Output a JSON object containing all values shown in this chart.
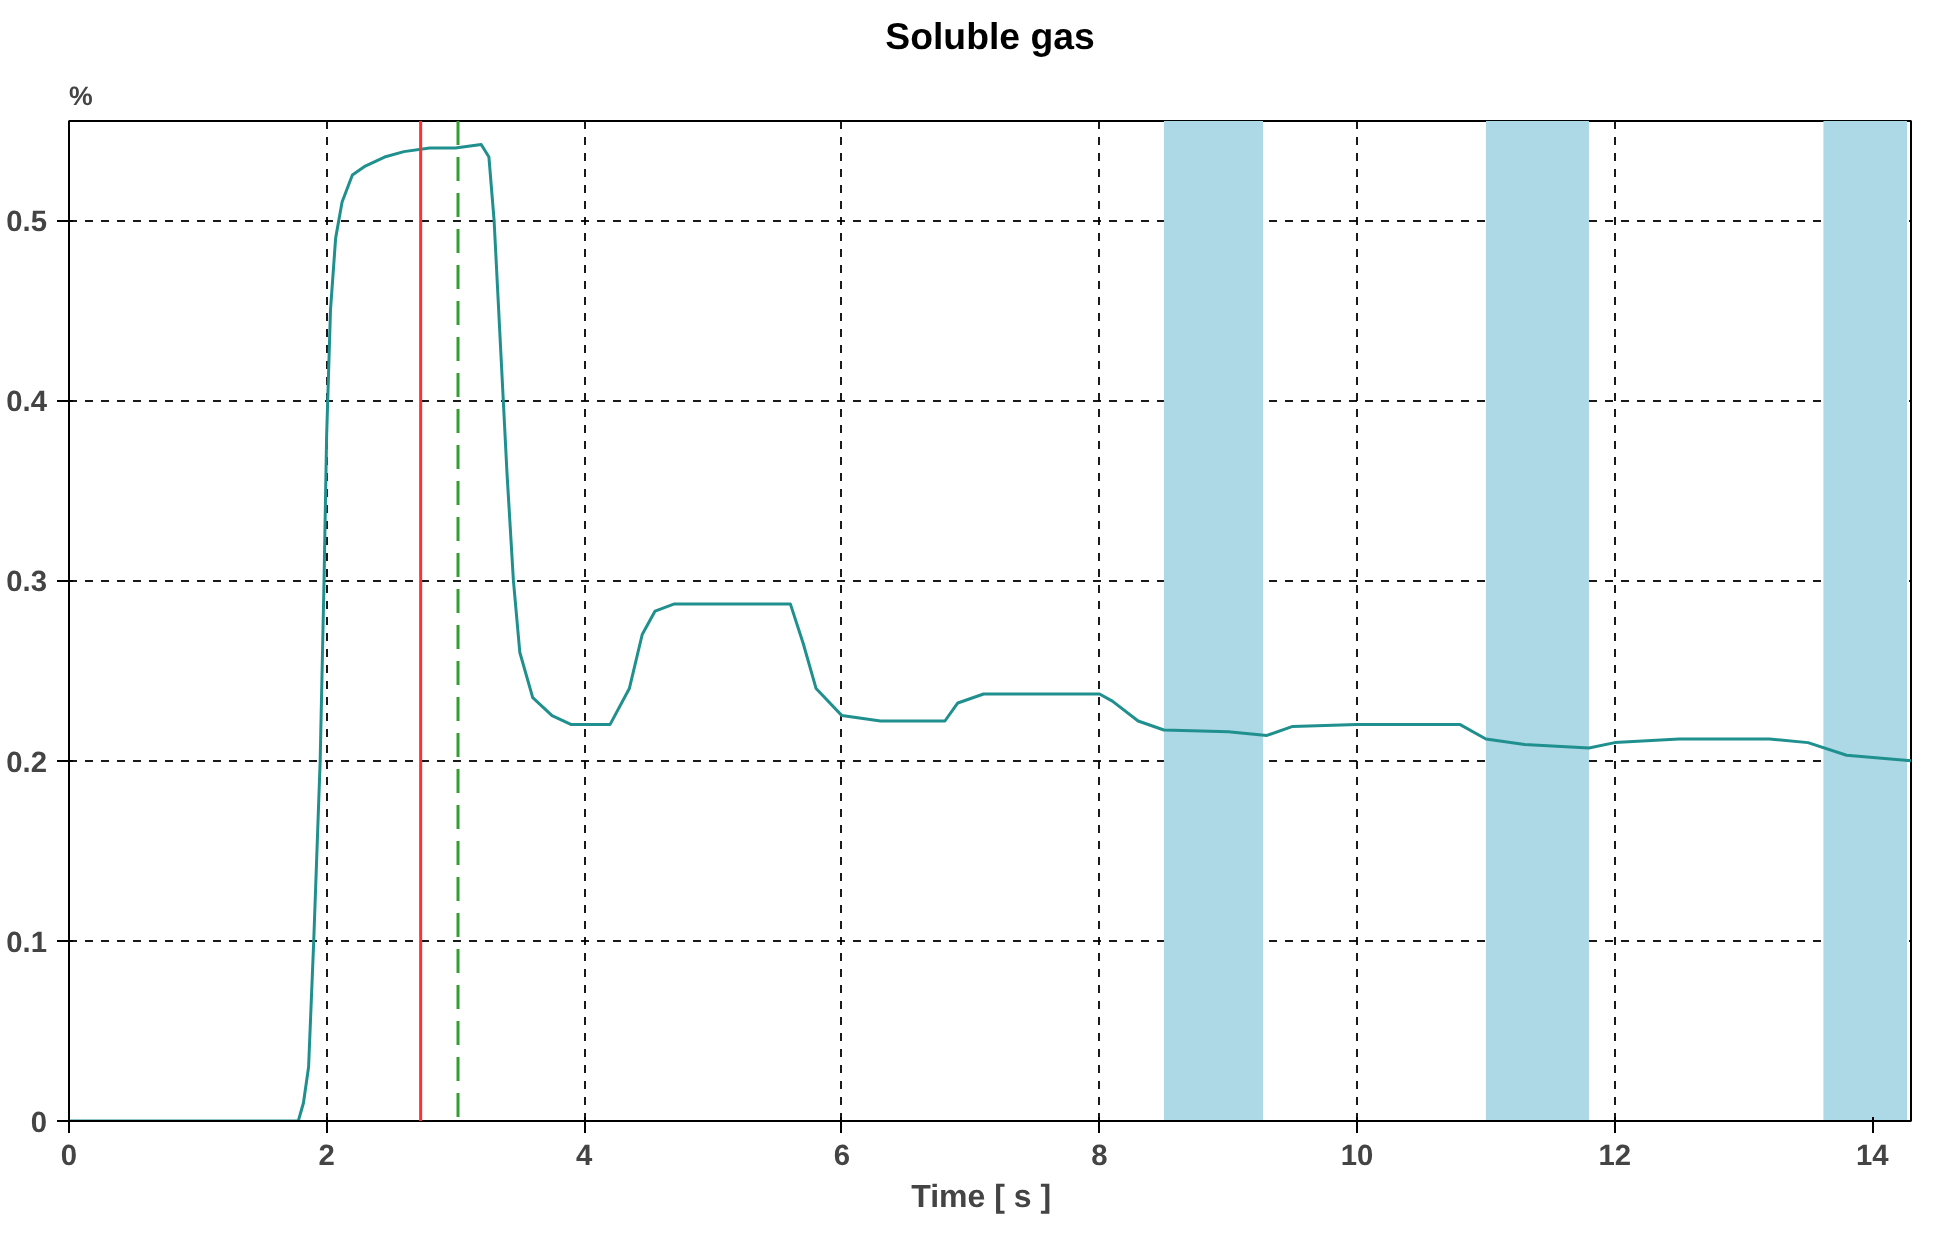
{
  "chart_data": {
    "type": "line",
    "title": "Soluble gas",
    "xlabel": "Time   [ s ]",
    "ylabel": "%",
    "xlim": [
      0,
      14.3
    ],
    "ylim": [
      0,
      0.555
    ],
    "xticks": [
      0,
      2,
      4,
      6,
      8,
      10,
      12,
      14
    ],
    "yticks": [
      0,
      0.1,
      0.2,
      0.3,
      0.4,
      0.5
    ],
    "grid": true,
    "series": [
      {
        "color": "#20908f",
        "x": [
          0,
          0.5,
          1.0,
          1.5,
          1.78,
          1.82,
          1.86,
          1.9,
          1.95,
          1.98,
          2.0,
          2.03,
          2.07,
          2.12,
          2.2,
          2.3,
          2.45,
          2.6,
          2.8,
          3.0,
          3.2,
          3.26,
          3.3,
          3.35,
          3.4,
          3.45,
          3.5,
          3.6,
          3.75,
          3.9,
          4.2,
          4.35,
          4.45,
          4.55,
          4.7,
          5.0,
          5.4,
          5.6,
          5.7,
          5.8,
          6.0,
          6.3,
          6.8,
          6.9,
          7.1,
          7.5,
          8.0,
          8.1,
          8.3,
          8.5,
          9.0,
          9.3,
          9.5,
          10.0,
          10.8,
          11.0,
          11.3,
          11.8,
          12.0,
          12.5,
          13.2,
          13.5,
          13.8,
          14.3
        ],
        "values": [
          0,
          0,
          0,
          0,
          0,
          0.01,
          0.03,
          0.1,
          0.2,
          0.3,
          0.38,
          0.45,
          0.49,
          0.51,
          0.525,
          0.53,
          0.535,
          0.538,
          0.54,
          0.54,
          0.542,
          0.535,
          0.5,
          0.43,
          0.36,
          0.3,
          0.26,
          0.235,
          0.225,
          0.22,
          0.22,
          0.24,
          0.27,
          0.283,
          0.287,
          0.287,
          0.287,
          0.287,
          0.265,
          0.24,
          0.225,
          0.222,
          0.222,
          0.232,
          0.237,
          0.237,
          0.237,
          0.233,
          0.222,
          0.217,
          0.216,
          0.214,
          0.219,
          0.22,
          0.22,
          0.212,
          0.209,
          0.207,
          0.21,
          0.212,
          0.212,
          0.21,
          0.203,
          0.2
        ]
      }
    ],
    "ref_lines": [
      {
        "axis": "x",
        "value": 2.73,
        "color": "#ff3030",
        "line_style": "solid"
      },
      {
        "axis": "x",
        "value": 3.02,
        "color": "#30a030",
        "line_style": "dashed"
      }
    ],
    "bands": [
      {
        "axis": "x",
        "from": 8.5,
        "to": 9.27,
        "color": "#add8e6"
      },
      {
        "axis": "x",
        "from": 11.0,
        "to": 11.8,
        "color": "#add8e6"
      },
      {
        "axis": "x",
        "from": 13.62,
        "to": 14.27,
        "color": "#add8e6"
      }
    ]
  }
}
